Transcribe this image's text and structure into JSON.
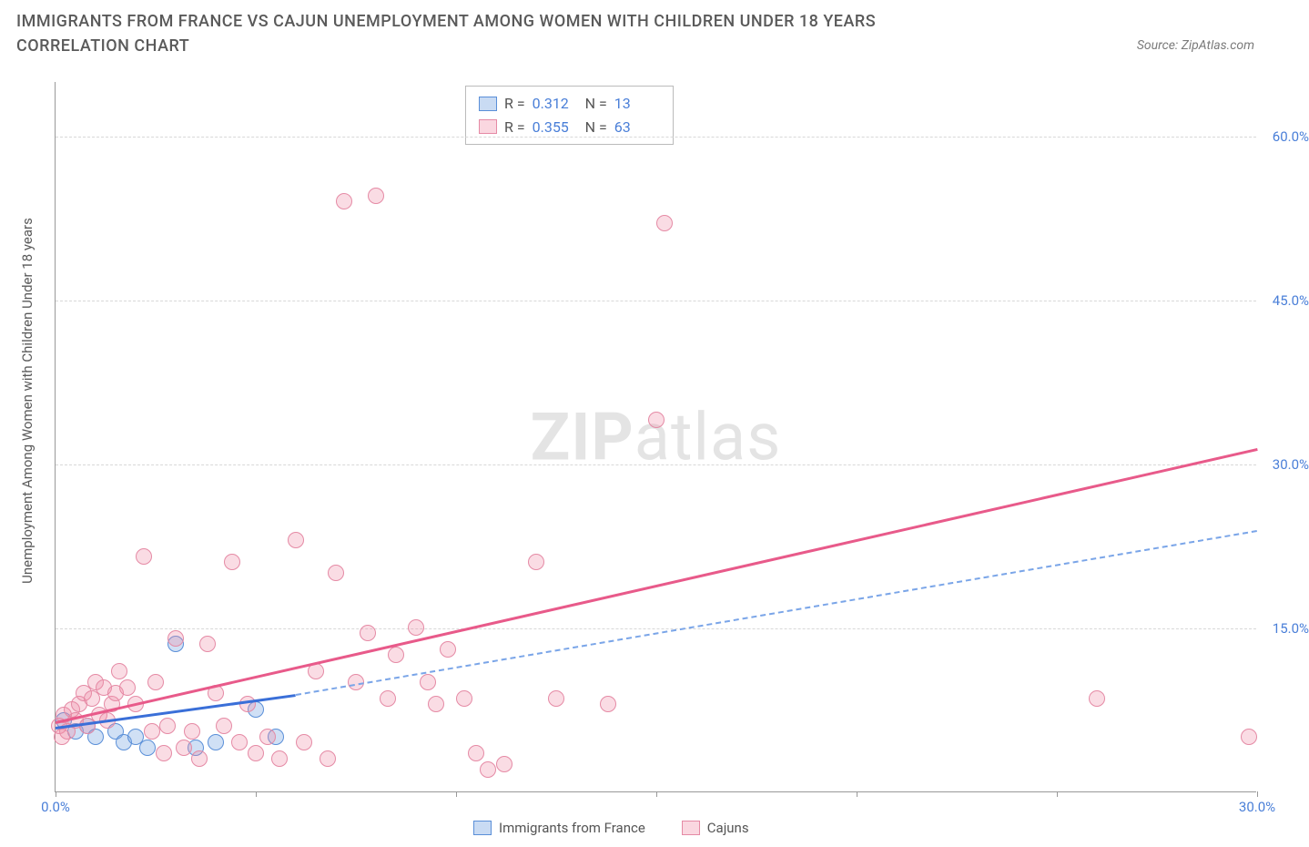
{
  "title": "IMMIGRANTS FROM FRANCE VS CAJUN UNEMPLOYMENT AMONG WOMEN WITH CHILDREN UNDER 18 YEARS CORRELATION CHART",
  "source": "Source: ZipAtlas.com",
  "ylabel": "Unemployment Among Women with Children Under 18 years",
  "watermark_bold": "ZIP",
  "watermark_light": "atlas",
  "chart": {
    "type": "scatter",
    "xlim": [
      0,
      30
    ],
    "ylim": [
      0,
      65
    ],
    "xtick_positions": [
      0,
      5,
      10,
      15,
      20,
      25,
      30
    ],
    "xtick_labels": {
      "0": "0.0%",
      "30": "30.0%"
    },
    "ytick_positions": [
      15,
      30,
      45,
      60
    ],
    "ytick_labels": {
      "15": "15.0%",
      "30": "30.0%",
      "45": "45.0%",
      "60": "60.0%"
    },
    "background_color": "#ffffff",
    "grid_color": "#d8d8d8",
    "axis_color": "#999999",
    "label_color": "#4a7fd8",
    "series": [
      {
        "name": "Immigrants from France",
        "key": "blue",
        "color_fill": "rgba(120,165,225,0.35)",
        "color_stroke": "#5a8fd8",
        "marker_size": 18,
        "stats": {
          "R": "0.312",
          "N": "13"
        },
        "trend": {
          "x0": 0,
          "y0": 6,
          "x1": 6,
          "y1": 9,
          "style": "solid",
          "color": "#3a6fd8",
          "width": 2.5
        },
        "trend_ext": {
          "x0": 6,
          "y0": 9,
          "x1": 30,
          "y1": 24,
          "style": "dashed",
          "color": "#7aa5e8",
          "width": 2
        },
        "points": [
          [
            0.2,
            6.5
          ],
          [
            0.5,
            5.5
          ],
          [
            0.8,
            6.0
          ],
          [
            1.0,
            5.0
          ],
          [
            1.5,
            5.5
          ],
          [
            1.7,
            4.5
          ],
          [
            2.0,
            5.0
          ],
          [
            2.3,
            4.0
          ],
          [
            3.0,
            13.5
          ],
          [
            3.5,
            4.0
          ],
          [
            4.0,
            4.5
          ],
          [
            5.0,
            7.5
          ],
          [
            5.5,
            5.0
          ]
        ]
      },
      {
        "name": "Cajuns",
        "key": "pink",
        "color_fill": "rgba(240,140,165,0.30)",
        "color_stroke": "#e58aa5",
        "marker_size": 18,
        "stats": {
          "R": "0.355",
          "N": "63"
        },
        "trend": {
          "x0": 0,
          "y0": 6.5,
          "x1": 30,
          "y1": 31.5,
          "style": "solid",
          "color": "#e85a8a",
          "width": 2.5
        },
        "points": [
          [
            0.1,
            6.0
          ],
          [
            0.2,
            7.0
          ],
          [
            0.3,
            5.5
          ],
          [
            0.4,
            7.5
          ],
          [
            0.5,
            6.5
          ],
          [
            0.6,
            8.0
          ],
          [
            0.7,
            9.0
          ],
          [
            0.8,
            6.0
          ],
          [
            0.9,
            8.5
          ],
          [
            1.0,
            10.0
          ],
          [
            1.1,
            7.0
          ],
          [
            1.2,
            9.5
          ],
          [
            1.3,
            6.5
          ],
          [
            1.4,
            8.0
          ],
          [
            1.5,
            9.0
          ],
          [
            1.6,
            11.0
          ],
          [
            1.8,
            9.5
          ],
          [
            2.0,
            8.0
          ],
          [
            2.2,
            21.5
          ],
          [
            2.4,
            5.5
          ],
          [
            2.5,
            10.0
          ],
          [
            2.7,
            3.5
          ],
          [
            2.8,
            6.0
          ],
          [
            3.0,
            14.0
          ],
          [
            3.2,
            4.0
          ],
          [
            3.4,
            5.5
          ],
          [
            3.6,
            3.0
          ],
          [
            3.8,
            13.5
          ],
          [
            4.0,
            9.0
          ],
          [
            4.2,
            6.0
          ],
          [
            4.4,
            21.0
          ],
          [
            4.6,
            4.5
          ],
          [
            4.8,
            8.0
          ],
          [
            5.0,
            3.5
          ],
          [
            5.3,
            5.0
          ],
          [
            5.6,
            3.0
          ],
          [
            6.0,
            23.0
          ],
          [
            6.2,
            4.5
          ],
          [
            6.5,
            11.0
          ],
          [
            6.8,
            3.0
          ],
          [
            7.0,
            20.0
          ],
          [
            7.2,
            54.0
          ],
          [
            7.5,
            10.0
          ],
          [
            7.8,
            14.5
          ],
          [
            8.0,
            54.5
          ],
          [
            8.3,
            8.5
          ],
          [
            8.5,
            12.5
          ],
          [
            9.0,
            15.0
          ],
          [
            9.3,
            10.0
          ],
          [
            9.5,
            8.0
          ],
          [
            9.8,
            13.0
          ],
          [
            10.2,
            8.5
          ],
          [
            10.5,
            3.5
          ],
          [
            10.8,
            2.0
          ],
          [
            11.2,
            2.5
          ],
          [
            12.0,
            21.0
          ],
          [
            12.5,
            8.5
          ],
          [
            13.8,
            8.0
          ],
          [
            15.0,
            34.0
          ],
          [
            15.2,
            52.0
          ],
          [
            26.0,
            8.5
          ],
          [
            29.8,
            5.0
          ],
          [
            0.15,
            5.0
          ]
        ]
      }
    ]
  },
  "legend": {
    "series1_label": "Immigrants from France",
    "series2_label": "Cajuns"
  },
  "stats_labels": {
    "R": "R =",
    "N": "N ="
  }
}
